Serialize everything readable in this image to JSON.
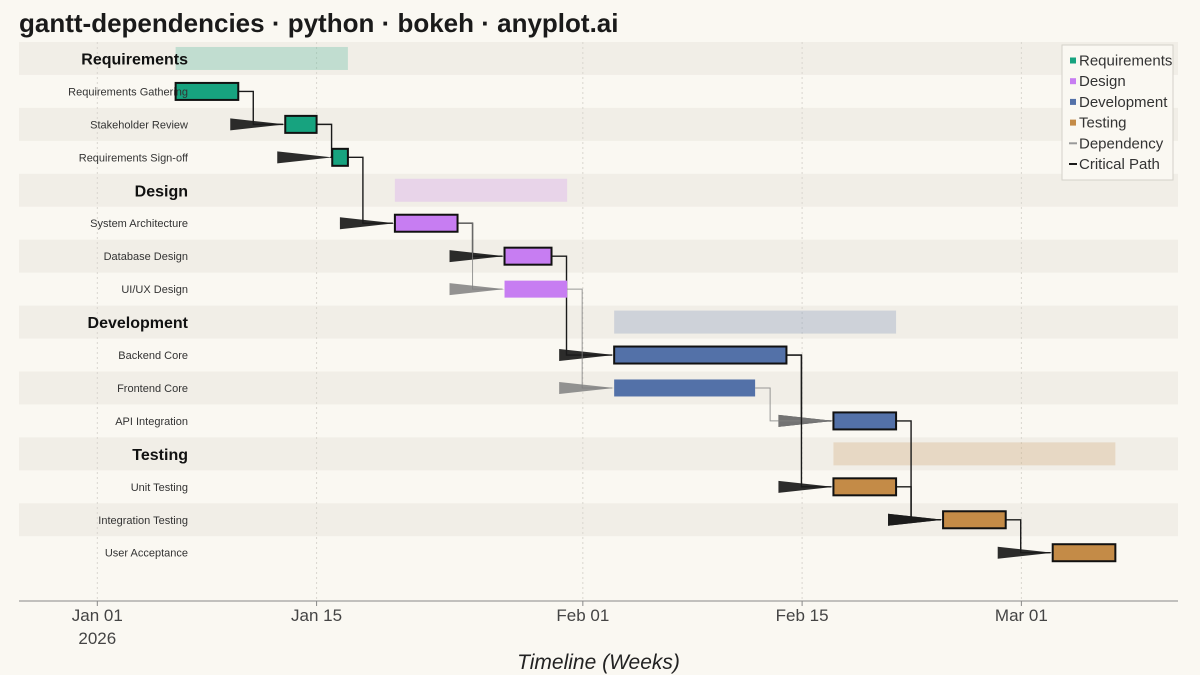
{
  "chart_data": {
    "type": "gantt",
    "title": "gantt-dependencies · python · bokeh · anyplot.ai",
    "xlabel": "Timeline (Weeks)",
    "ylabel": "",
    "xlim": [
      "2025-12-27",
      "2026-03-11"
    ],
    "x_ticks": [
      {
        "date": "2026-01-01",
        "label": "Jan 01",
        "sublabel": "2026"
      },
      {
        "date": "2026-01-15",
        "label": "Jan 15",
        "sublabel": ""
      },
      {
        "date": "2026-02-01",
        "label": "Feb 01",
        "sublabel": ""
      },
      {
        "date": "2026-02-15",
        "label": "Feb 15",
        "sublabel": ""
      },
      {
        "date": "2026-03-01",
        "label": "Mar 01",
        "sublabel": ""
      }
    ],
    "grid": true,
    "legend_position": "top-right",
    "legend": [
      {
        "label": "Requirements",
        "kind": "square",
        "color": "#17a37f"
      },
      {
        "label": "Design",
        "kind": "square",
        "color": "#c77df2"
      },
      {
        "label": "Development",
        "kind": "square",
        "color": "#5371a8"
      },
      {
        "label": "Testing",
        "kind": "square",
        "color": "#c48b47"
      },
      {
        "label": "Dependency",
        "kind": "line",
        "color": "#999999"
      },
      {
        "label": "Critical Path",
        "kind": "line",
        "color": "#1a1a1a"
      }
    ],
    "colors": {
      "Requirements": "#17a37f",
      "Design": "#c77df2",
      "Development": "#5371a8",
      "Testing": "#c48b47",
      "critical": "#1a1a1a",
      "dependency": "#808080"
    },
    "rows": [
      {
        "type": "group",
        "name": "Requirements",
        "start": "2026-01-06",
        "end": "2026-01-17"
      },
      {
        "type": "task",
        "name": "Requirements Gathering",
        "group": "Requirements",
        "start": "2026-01-06",
        "end": "2026-01-10",
        "critical": true
      },
      {
        "type": "task",
        "name": "Stakeholder Review",
        "group": "Requirements",
        "start": "2026-01-13",
        "end": "2026-01-15",
        "critical": true
      },
      {
        "type": "task",
        "name": "Requirements Sign-off",
        "group": "Requirements",
        "start": "2026-01-16",
        "end": "2026-01-17",
        "critical": true
      },
      {
        "type": "group",
        "name": "Design",
        "start": "2026-01-20",
        "end": "2026-01-31"
      },
      {
        "type": "task",
        "name": "System Architecture",
        "group": "Design",
        "start": "2026-01-20",
        "end": "2026-01-24",
        "critical": true
      },
      {
        "type": "task",
        "name": "Database Design",
        "group": "Design",
        "start": "2026-01-27",
        "end": "2026-01-30",
        "critical": true
      },
      {
        "type": "task",
        "name": "UI/UX Design",
        "group": "Design",
        "start": "2026-01-27",
        "end": "2026-01-31",
        "critical": false
      },
      {
        "type": "group",
        "name": "Development",
        "start": "2026-02-03",
        "end": "2026-02-21"
      },
      {
        "type": "task",
        "name": "Backend Core",
        "group": "Development",
        "start": "2026-02-03",
        "end": "2026-02-14",
        "critical": true
      },
      {
        "type": "task",
        "name": "Frontend Core",
        "group": "Development",
        "start": "2026-02-03",
        "end": "2026-02-12",
        "critical": false
      },
      {
        "type": "task",
        "name": "API Integration",
        "group": "Development",
        "start": "2026-02-17",
        "end": "2026-02-21",
        "critical": true
      },
      {
        "type": "group",
        "name": "Testing",
        "start": "2026-02-17",
        "end": "2026-03-07"
      },
      {
        "type": "task",
        "name": "Unit Testing",
        "group": "Testing",
        "start": "2026-02-17",
        "end": "2026-02-21",
        "critical": true
      },
      {
        "type": "task",
        "name": "Integration Testing",
        "group": "Testing",
        "start": "2026-02-24",
        "end": "2026-02-28",
        "critical": true
      },
      {
        "type": "task",
        "name": "User Acceptance",
        "group": "Testing",
        "start": "2026-03-03",
        "end": "2026-03-07",
        "critical": true
      }
    ],
    "dependencies": [
      {
        "from": "Requirements Gathering",
        "to": "Stakeholder Review",
        "critical": true
      },
      {
        "from": "Stakeholder Review",
        "to": "Requirements Sign-off",
        "critical": true
      },
      {
        "from": "Requirements Sign-off",
        "to": "System Architecture",
        "critical": true
      },
      {
        "from": "System Architecture",
        "to": "Database Design",
        "critical": true
      },
      {
        "from": "System Architecture",
        "to": "UI/UX Design",
        "critical": false
      },
      {
        "from": "Database Design",
        "to": "Backend Core",
        "critical": true
      },
      {
        "from": "UI/UX Design",
        "to": "Frontend Core",
        "critical": false
      },
      {
        "from": "Backend Core",
        "to": "API Integration",
        "critical": true
      },
      {
        "from": "Frontend Core",
        "to": "API Integration",
        "critical": false
      },
      {
        "from": "Backend Core",
        "to": "Unit Testing",
        "critical": true
      },
      {
        "from": "API Integration",
        "to": "Integration Testing",
        "critical": true
      },
      {
        "from": "Unit Testing",
        "to": "Integration Testing",
        "critical": true
      },
      {
        "from": "Integration Testing",
        "to": "User Acceptance",
        "critical": true
      }
    ]
  }
}
